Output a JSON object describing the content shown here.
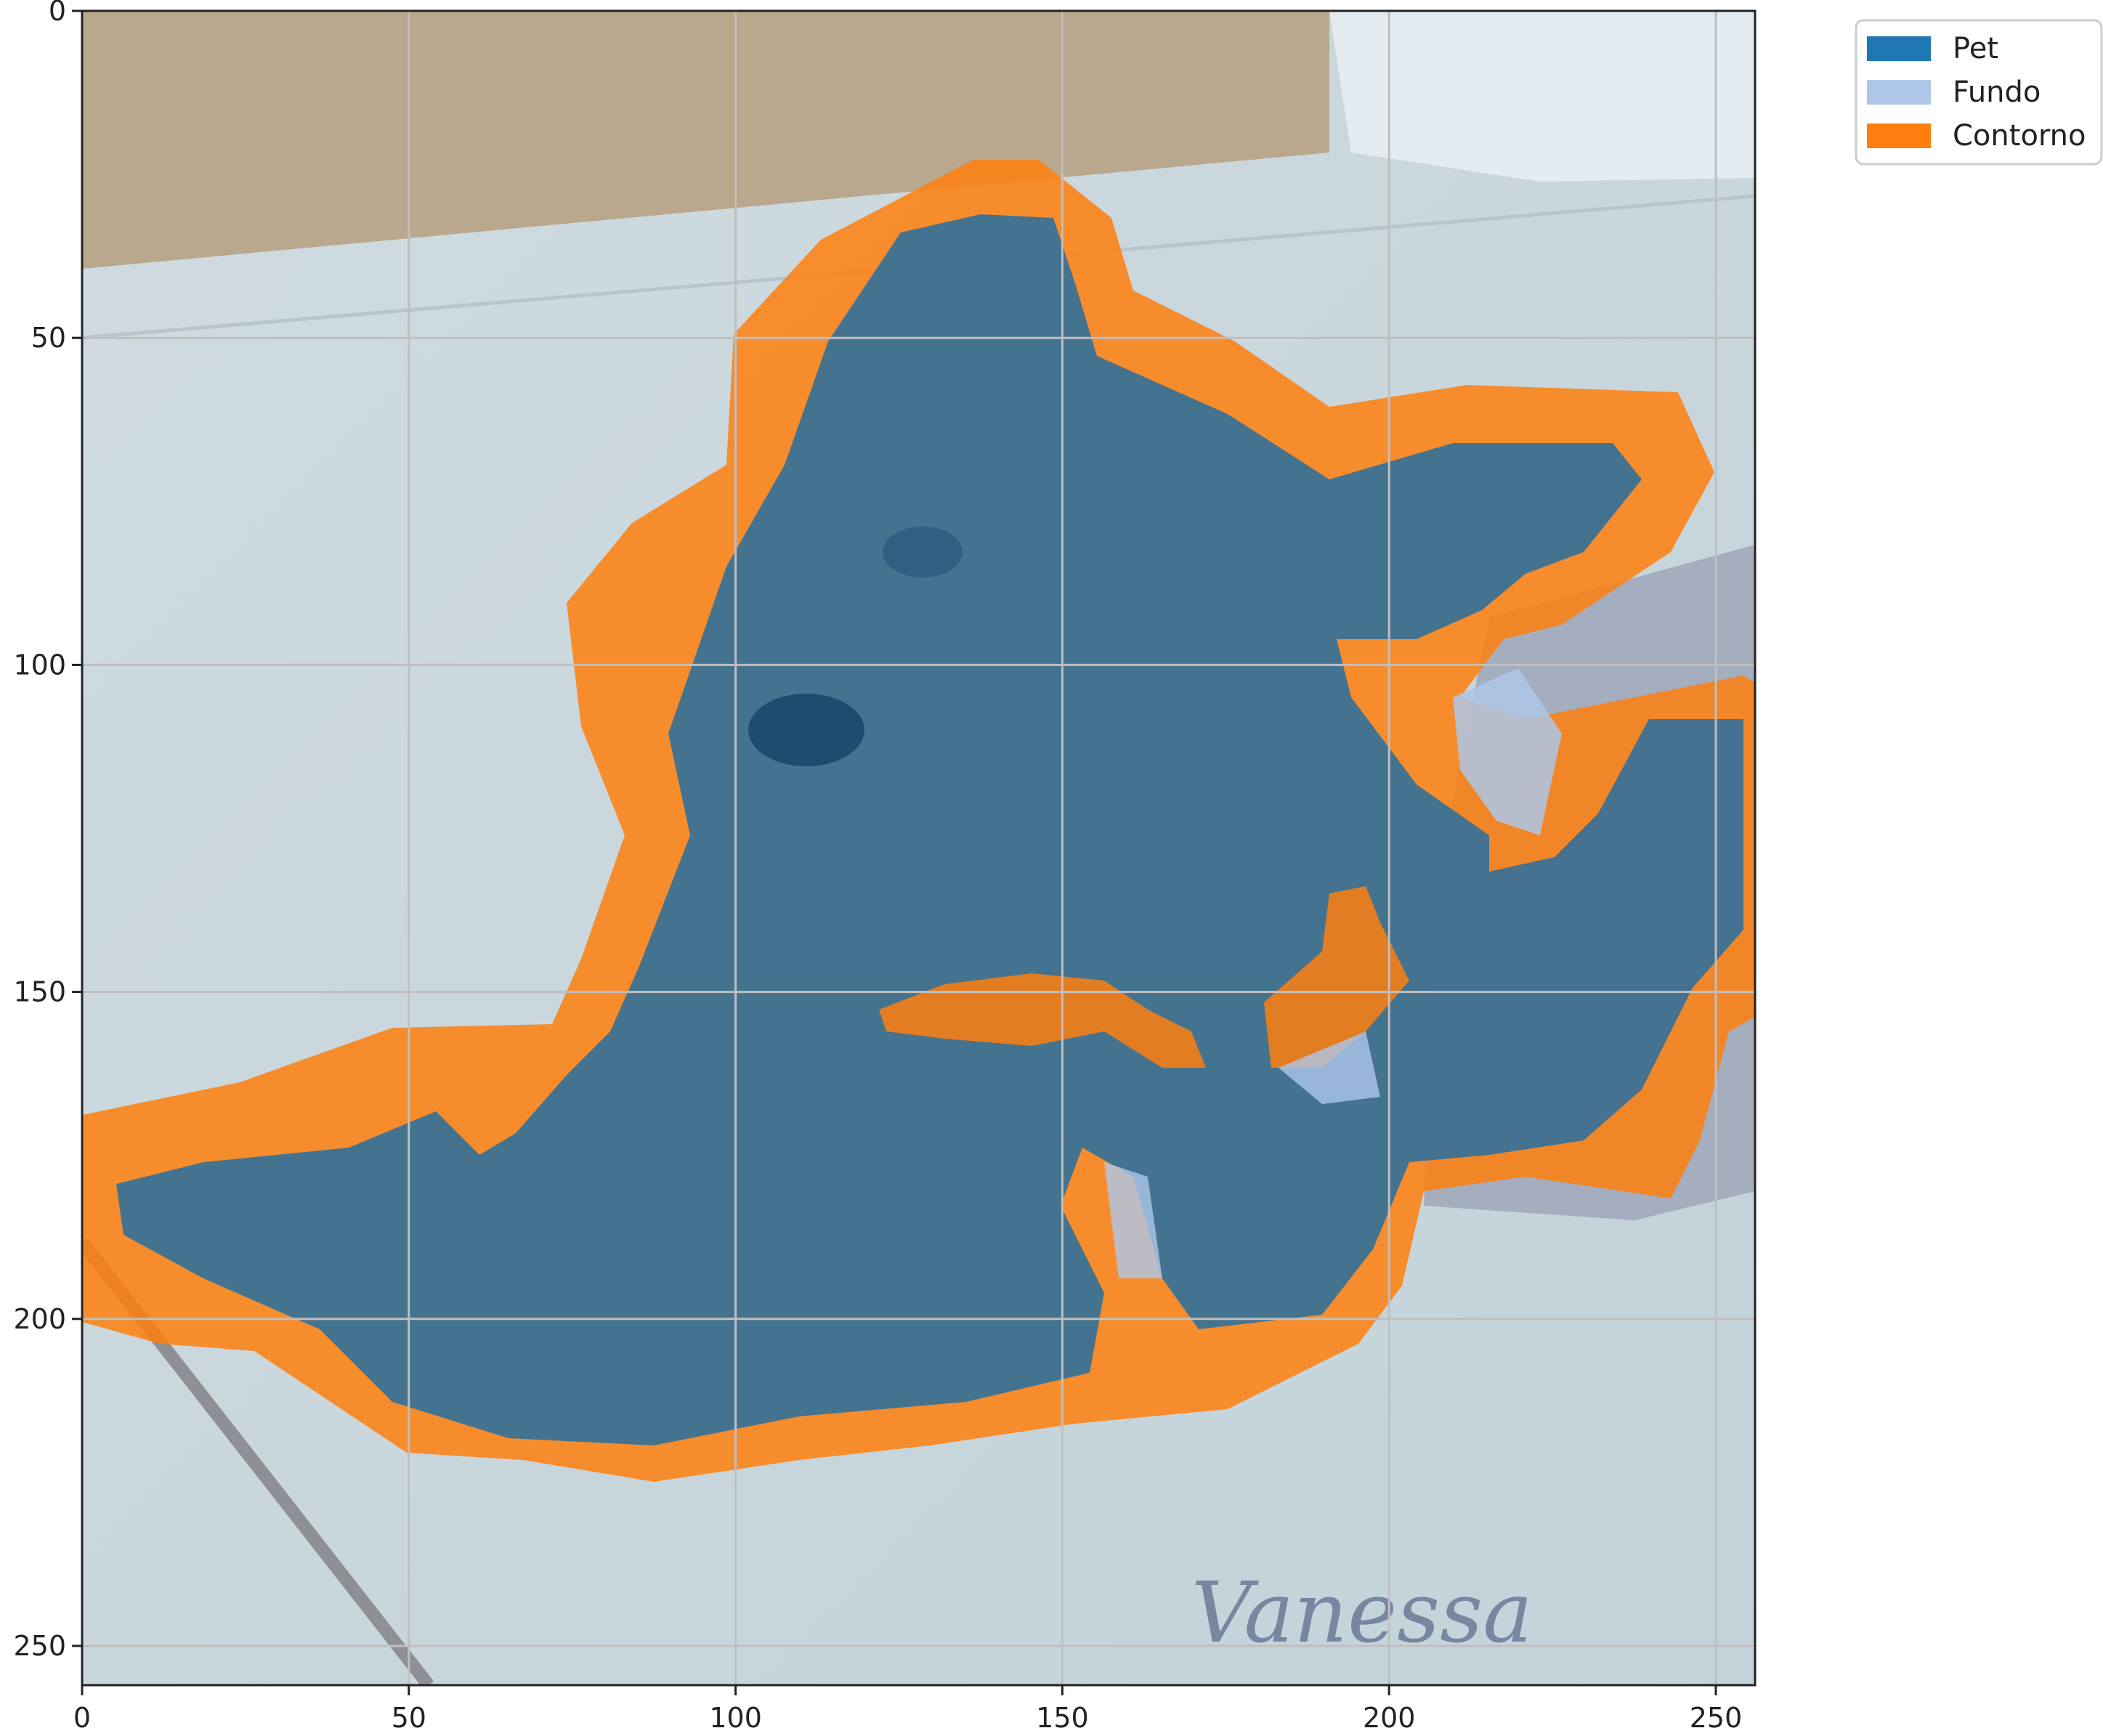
{
  "image": {
    "description_terms": [
      "small dog lying on tiled floor",
      "segmentation overlay"
    ],
    "colors": {
      "pet": "#1f77b4",
      "background_class": "#aec7e8",
      "contour": "#ff7f0e",
      "floor": "#c9d7de",
      "wall": "#b9a88d",
      "grid": "#bfbfbf"
    }
  },
  "axes": {
    "xlim": [
      0,
      256
    ],
    "ylim": [
      256,
      0
    ],
    "x_ticks": [
      "0",
      "50",
      "100",
      "150",
      "200",
      "250"
    ],
    "y_ticks": [
      "0",
      "50",
      "100",
      "150",
      "200",
      "250"
    ],
    "grid": true
  },
  "legend": {
    "placement": "outside-top-right",
    "entries": [
      {
        "label": "Pet",
        "color": "#1f77b4"
      },
      {
        "label": "Fundo",
        "color": "#aec7e8"
      },
      {
        "label": "Contorno",
        "color": "#ff7f0e"
      }
    ]
  },
  "watermark": {
    "text": "Vanessa"
  }
}
